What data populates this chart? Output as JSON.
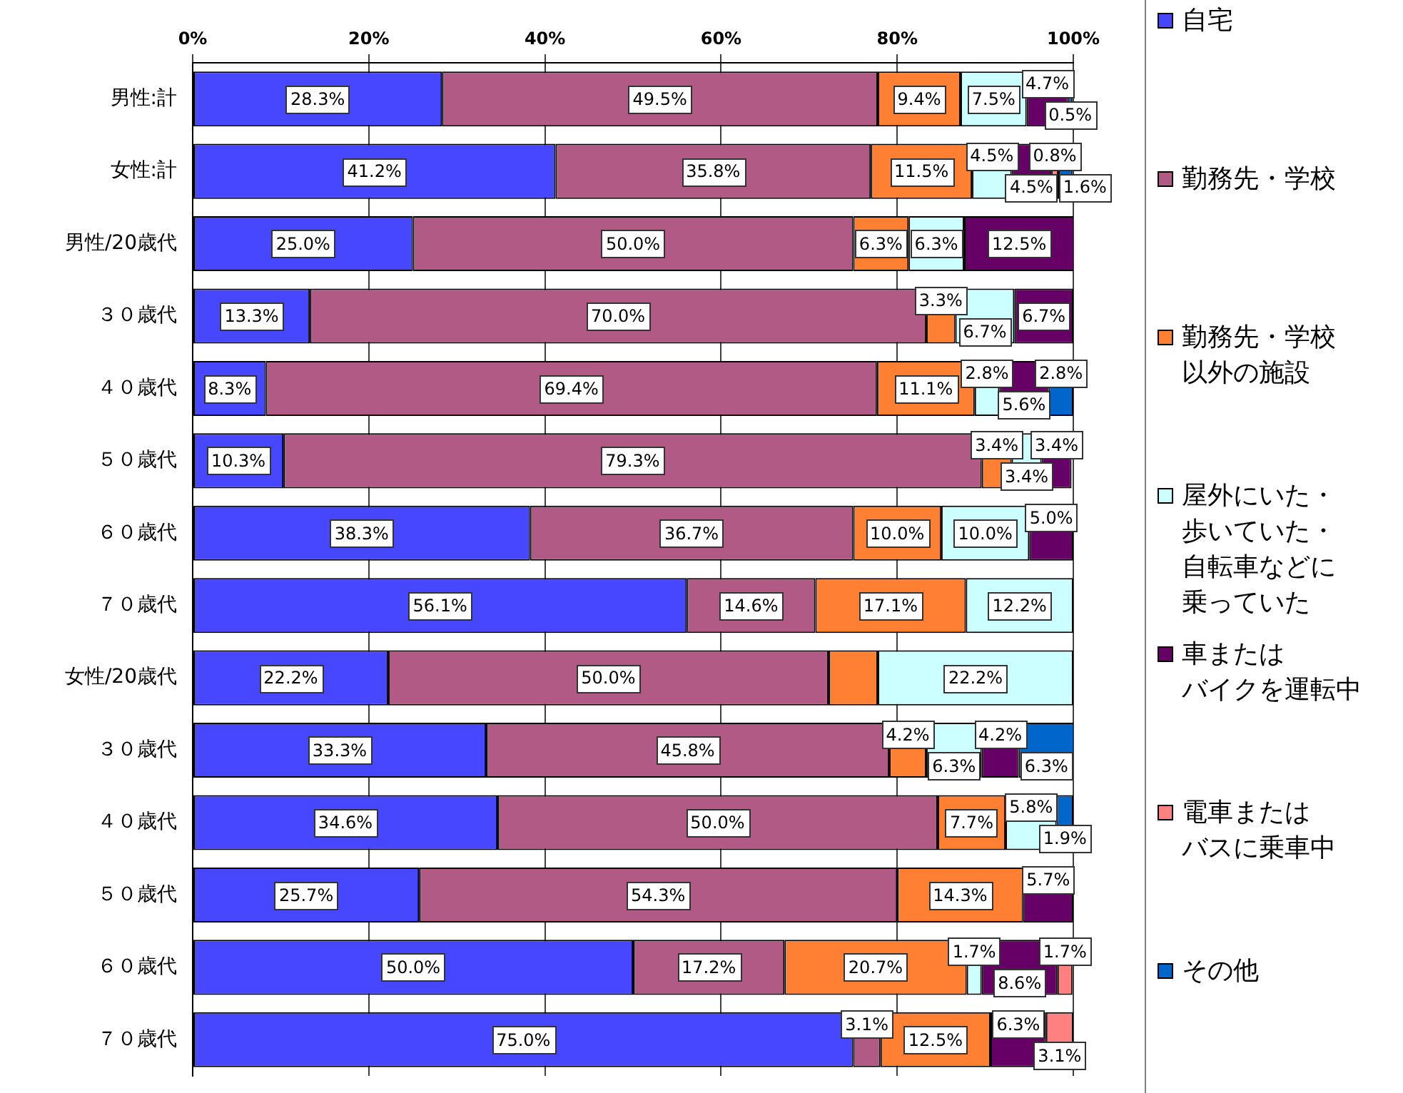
{
  "chart_data": {
    "type": "bar",
    "orientation": "horizontal",
    "stacked": true,
    "grid": "x",
    "legend": "right",
    "categories": [
      "男性:計",
      "女性:計",
      "男性/20歳代",
      "３０歳代",
      "４０歳代",
      "５０歳代",
      "６０歳代",
      "７０歳代",
      "女性/20歳代",
      "３０歳代",
      "４０歳代",
      "５０歳代",
      "６０歳代",
      "７０歳代"
    ],
    "xlim": [
      0,
      100
    ],
    "xticks": [
      {
        "value": 0,
        "label": "0%"
      },
      {
        "value": 20,
        "label": "20%"
      },
      {
        "value": 40,
        "label": "40%"
      },
      {
        "value": 60,
        "label": "60%"
      },
      {
        "value": 80,
        "label": "80%"
      },
      {
        "value": 100,
        "label": "100%"
      }
    ],
    "series": [
      {
        "name": "自宅",
        "color": "#4747ff",
        "values": [
          28.3,
          41.2,
          25.0,
          13.3,
          8.3,
          10.3,
          38.3,
          56.1,
          22.2,
          33.3,
          34.6,
          25.7,
          50.0,
          75.0
        ],
        "value_labels": [
          "28.3%",
          "41.2%",
          "25.0%",
          "13.3%",
          "8.3%",
          "10.3%",
          "38.3%",
          "56.1%",
          "22.2%",
          "33.3%",
          "34.6%",
          "25.7%",
          "50.0%",
          "75.0%"
        ]
      },
      {
        "name": "勤務先・学校",
        "color": "#b05a85",
        "values": [
          49.5,
          35.8,
          50.0,
          70.0,
          69.4,
          79.3,
          36.7,
          14.6,
          50.0,
          45.8,
          50.0,
          54.3,
          17.2,
          3.1
        ],
        "value_labels": [
          "49.5%",
          "35.8%",
          "50.0%",
          "70.0%",
          "69.4%",
          "79.3%",
          "36.7%",
          "14.6%",
          "50.0%",
          "45.8%",
          "50.0%",
          "54.3%",
          "17.2%",
          "3.1%"
        ]
      },
      {
        "name": "勤務先・学校以外の施設",
        "color": "#ff7f33",
        "values": [
          9.4,
          11.5,
          6.3,
          3.3,
          11.1,
          3.4,
          10.0,
          17.1,
          5.6,
          4.2,
          7.7,
          14.3,
          20.7,
          12.5
        ],
        "value_labels": [
          "9.4%",
          "11.5%",
          "6.3%",
          "3.3%",
          "11.1%",
          "3.4%",
          "10.0%",
          "17.1%",
          null,
          "4.2%",
          "7.7%",
          "14.3%",
          "20.7%",
          "12.5%"
        ]
      },
      {
        "name": "屋外にいた・歩いていた・自転車などに乗っていた",
        "color": "#ccffff",
        "values": [
          7.5,
          4.5,
          6.3,
          6.7,
          2.8,
          3.4,
          10.0,
          12.2,
          22.2,
          6.3,
          5.8,
          null,
          1.7,
          null
        ],
        "value_labels": [
          "7.5%",
          "4.5%",
          "6.3%",
          "6.7%",
          "2.8%",
          "3.4%",
          "10.0%",
          "12.2%",
          "22.2%",
          "6.3%",
          "5.8%",
          null,
          "1.7%",
          null
        ]
      },
      {
        "name": "車またはバイクを運転中",
        "color": "#660066",
        "values": [
          4.7,
          4.5,
          12.5,
          6.7,
          5.6,
          3.4,
          5.0,
          null,
          null,
          4.2,
          null,
          5.7,
          8.6,
          6.3
        ],
        "value_labels": [
          "4.7%",
          "4.5%",
          "12.5%",
          "6.7%",
          "5.6%",
          "3.4%",
          "5.0%",
          null,
          null,
          "4.2%",
          null,
          "5.7%",
          "8.6%",
          "6.3%"
        ]
      },
      {
        "name": "電車またはバスに乗車中",
        "color": "#ff8080",
        "values": [
          null,
          0.8,
          null,
          null,
          null,
          null,
          null,
          null,
          null,
          null,
          null,
          null,
          1.7,
          3.1
        ],
        "value_labels": [
          null,
          "0.8%",
          null,
          null,
          null,
          null,
          null,
          null,
          null,
          null,
          null,
          null,
          "1.7%",
          "3.1%"
        ]
      },
      {
        "name": "その他",
        "color": "#0066cc",
        "values": [
          0.5,
          1.6,
          null,
          null,
          2.8,
          null,
          null,
          null,
          null,
          6.3,
          1.9,
          null,
          null,
          null
        ],
        "value_labels": [
          "0.5%",
          "1.6%",
          null,
          null,
          "2.8%",
          null,
          null,
          null,
          null,
          "6.3%",
          "1.9%",
          null,
          null,
          null
        ]
      }
    ]
  }
}
